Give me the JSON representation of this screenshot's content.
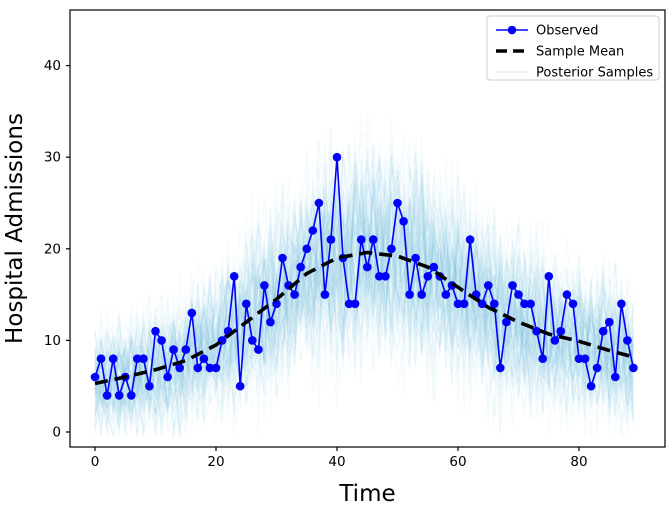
{
  "chart_data": {
    "type": "line",
    "title": "",
    "xlabel": "Time",
    "ylabel": "Hospital Admissions",
    "xlim": [
      -4.2,
      94.2
    ],
    "ylim": [
      -1.6,
      46.2
    ],
    "x_ticks": [
      0,
      20,
      40,
      60,
      80
    ],
    "y_ticks": [
      0,
      10,
      20,
      30,
      40
    ],
    "grid": false,
    "legend_position": "upper right",
    "legend": [
      {
        "label": "Observed",
        "type": "line-marker",
        "color": "#0000ff"
      },
      {
        "label": "Sample Mean",
        "type": "dashed",
        "color": "#000000"
      },
      {
        "label": "Posterior Samples",
        "type": "faint-line",
        "color": "#add8e6"
      }
    ],
    "series": [
      {
        "name": "Observed",
        "color": "#0000ff",
        "marker": "circle",
        "x_start": 0,
        "x_step": 1,
        "values": [
          6,
          8,
          4,
          8,
          4,
          6,
          4,
          8,
          8,
          5,
          11,
          10,
          6,
          9,
          7,
          9,
          13,
          7,
          8,
          7,
          7,
          10,
          11,
          17,
          5,
          14,
          10,
          9,
          16,
          12,
          14,
          19,
          16,
          15,
          18,
          20,
          22,
          25,
          15,
          21,
          30,
          19,
          14,
          14,
          21,
          18,
          21,
          17,
          17,
          20,
          25,
          23,
          15,
          19,
          15,
          17,
          18,
          17,
          15,
          16,
          14,
          14,
          21,
          15,
          14,
          16,
          14,
          7,
          12,
          16,
          15,
          14,
          14,
          11,
          8,
          17,
          10,
          11,
          15,
          14,
          8,
          8,
          5,
          7,
          11,
          12,
          6,
          14,
          10,
          7
        ]
      },
      {
        "name": "Sample Mean",
        "color": "#000000",
        "style": "dashed",
        "points": [
          [
            0,
            5.3
          ],
          [
            5,
            6.0
          ],
          [
            10,
            6.8
          ],
          [
            15,
            7.8
          ],
          [
            20,
            9.5
          ],
          [
            25,
            12.0
          ],
          [
            30,
            14.5
          ],
          [
            35,
            17.3
          ],
          [
            40,
            19.0
          ],
          [
            45,
            19.6
          ],
          [
            50,
            19.2
          ],
          [
            55,
            18.0
          ],
          [
            60,
            15.8
          ],
          [
            65,
            13.6
          ],
          [
            70,
            12.0
          ],
          [
            75,
            10.7
          ],
          [
            80,
            9.9
          ],
          [
            85,
            8.9
          ],
          [
            89,
            8.2
          ]
        ]
      },
      {
        "name": "Posterior Samples",
        "color": "#79bde4",
        "style": "sample-cloud",
        "n_samples": 100,
        "noise_scale": 1.25,
        "opacity": 0.065
      }
    ]
  }
}
